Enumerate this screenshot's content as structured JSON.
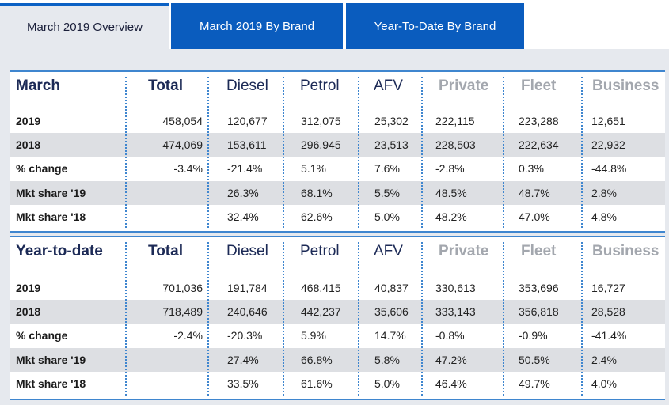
{
  "tabs": [
    "March 2019 Overview",
    "March 2019 By Brand",
    "Year-To-Date By Brand"
  ],
  "columns": [
    "Total",
    "Diesel",
    "Petrol",
    "AFV",
    "Private",
    "Fleet",
    "Business"
  ],
  "tables": [
    {
      "title": "March",
      "rows": [
        {
          "label": "2019",
          "values": [
            "458,054",
            "120,677",
            "312,075",
            "25,302",
            "222,115",
            "223,288",
            "12,651"
          ]
        },
        {
          "label": "2018",
          "values": [
            "474,069",
            "153,611",
            "296,945",
            "23,513",
            "228,503",
            "222,634",
            "22,932"
          ]
        },
        {
          "label": "% change",
          "values": [
            "-3.4%",
            "-21.4%",
            "5.1%",
            "7.6%",
            "-2.8%",
            "0.3%",
            "-44.8%"
          ]
        },
        {
          "label": "Mkt share '19",
          "values": [
            "",
            "26.3%",
            "68.1%",
            "5.5%",
            "48.5%",
            "48.7%",
            "2.8%"
          ]
        },
        {
          "label": "Mkt share '18",
          "values": [
            "",
            "32.4%",
            "62.6%",
            "5.0%",
            "48.2%",
            "47.0%",
            "4.8%"
          ]
        }
      ]
    },
    {
      "title": "Year-to-date",
      "rows": [
        {
          "label": "2019",
          "values": [
            "701,036",
            "191,784",
            "468,415",
            "40,837",
            "330,613",
            "353,696",
            "16,727"
          ]
        },
        {
          "label": "2018",
          "values": [
            "718,489",
            "240,646",
            "442,237",
            "35,606",
            "333,143",
            "356,818",
            "28,528"
          ]
        },
        {
          "label": "% change",
          "values": [
            "-2.4%",
            "-20.3%",
            "5.9%",
            "14.7%",
            "-0.8%",
            "-0.9%",
            "-41.4%"
          ]
        },
        {
          "label": "Mkt share '19",
          "values": [
            "",
            "27.4%",
            "66.8%",
            "5.8%",
            "47.2%",
            "50.5%",
            "2.4%"
          ]
        },
        {
          "label": "Mkt share '18",
          "values": [
            "",
            "33.5%",
            "61.6%",
            "5.0%",
            "46.4%",
            "49.7%",
            "4.0%"
          ]
        }
      ]
    }
  ]
}
